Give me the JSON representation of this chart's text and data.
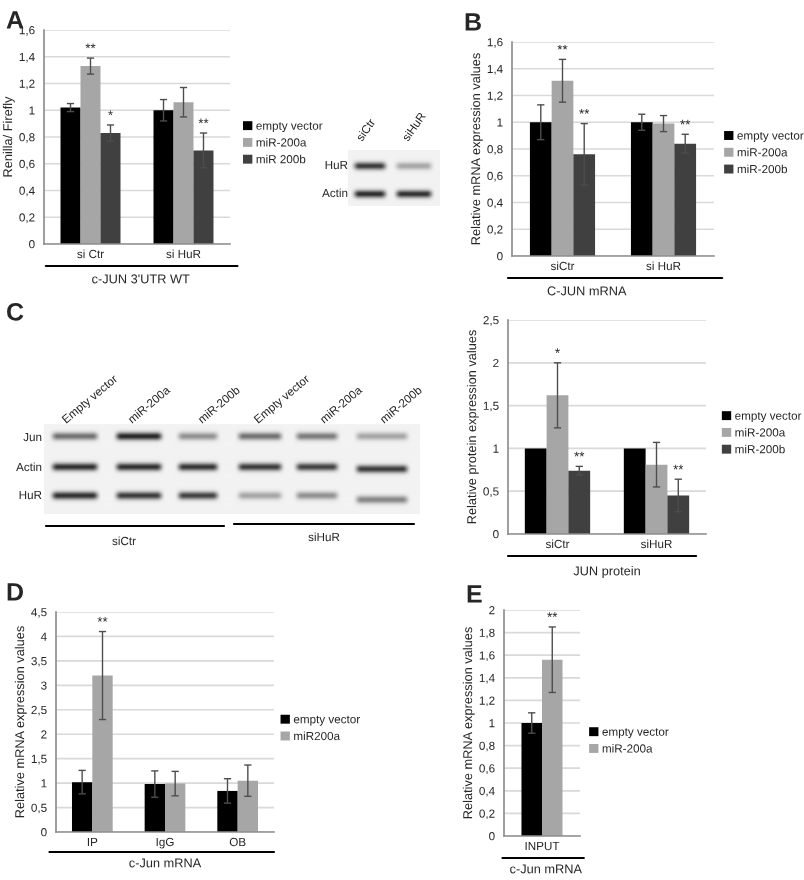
{
  "chart_data": [
    {
      "type": "bar",
      "title": "A",
      "ylabel": "Renilla/ Firefly",
      "xlabel": "c-JUN 3'UTR WT",
      "categories": [
        "si Ctr",
        "si HuR"
      ],
      "series": [
        {
          "name": "empty vector",
          "color": "#000000",
          "values": [
            1.02,
            1.0
          ],
          "errors": [
            0.03,
            0.08
          ]
        },
        {
          "name": "miR-200a",
          "color": "#a6a6a6",
          "values": [
            1.33,
            1.06
          ],
          "errors": [
            0.06,
            0.11
          ]
        },
        {
          "name": "miR 200b",
          "color": "#404040",
          "values": [
            0.83,
            0.7
          ],
          "errors": [
            0.06,
            0.13
          ]
        }
      ],
      "ylim": [
        0,
        1.6
      ],
      "yticks": [
        0,
        {
          "value": 0.2,
          "label": "0,2"
        },
        {
          "value": 0.4,
          "label": "0,4"
        },
        {
          "value": 0.6,
          "label": "0,6"
        },
        {
          "value": 0.8,
          "label": "0,8"
        },
        1,
        {
          "value": 1.2,
          "label": "1,2"
        },
        {
          "value": 1.4,
          "label": "1,4"
        },
        {
          "value": 1.6,
          "label": "1,6"
        }
      ],
      "grid": "y",
      "legend": "right",
      "annotations": [
        "**",
        "*",
        "**"
      ]
    },
    {
      "type": "other",
      "annotations": [
        "siCtr",
        "siHuR",
        "HuR",
        "Actin"
      ]
    },
    {
      "type": "bar",
      "title": "B",
      "ylabel": "Relative mRNA expression values",
      "xlabel": "C-JUN mRNA",
      "categories": [
        "siCtr",
        "si HuR"
      ],
      "series": [
        {
          "name": "empty vector",
          "color": "#000000",
          "values": [
            1.0,
            1.0
          ],
          "errors": [
            0.13,
            0.06
          ]
        },
        {
          "name": "miR-200a",
          "color": "#a6a6a6",
          "values": [
            1.31,
            0.99
          ],
          "errors": [
            0.16,
            0.06
          ]
        },
        {
          "name": "miR-200b",
          "color": "#404040",
          "values": [
            0.76,
            0.84
          ],
          "errors": [
            0.23,
            0.07
          ]
        }
      ],
      "ylim": [
        0,
        1.6
      ],
      "yticks": [
        0,
        {
          "value": 0.2,
          "label": "0,2"
        },
        {
          "value": 0.4,
          "label": "0,4"
        },
        {
          "value": 0.6,
          "label": "0,6"
        },
        {
          "value": 0.8,
          "label": "0,8"
        },
        1,
        {
          "value": 1.2,
          "label": "1,2"
        },
        {
          "value": 1.4,
          "label": "1,4"
        },
        {
          "value": 1.6,
          "label": "1,6"
        }
      ],
      "grid": "y",
      "legend": "right",
      "annotations": [
        "**",
        "**",
        "**"
      ]
    },
    {
      "type": "other",
      "title": "C",
      "annotations": [
        "Empty vector",
        "miR-200a",
        "miR-200b",
        "Empty vector",
        "miR-200a",
        "miR-200b",
        "Jun",
        "Actin",
        "HuR",
        "siCtr",
        "siHuR"
      ]
    },
    {
      "type": "bar",
      "ylabel": "Relative protein expression values",
      "xlabel": "JUN protein",
      "categories": [
        "siCtr",
        "siHuR"
      ],
      "series": [
        {
          "name": "empty vector",
          "color": "#000000",
          "values": [
            1.0,
            1.0
          ]
        },
        {
          "name": "miR-200a",
          "color": "#a6a6a6",
          "values": [
            1.62,
            0.81
          ],
          "errors": [
            0.38,
            0.26
          ]
        },
        {
          "name": "miR-200b",
          "color": "#404040",
          "values": [
            0.74,
            0.45
          ],
          "errors": [
            0.05,
            0.19
          ]
        }
      ],
      "ylim": [
        0,
        2.5
      ],
      "yticks": [
        0,
        {
          "value": 0.5,
          "label": "0,5"
        },
        1,
        {
          "value": 1.5,
          "label": "1,5"
        },
        2,
        {
          "value": 2.5,
          "label": "2,5"
        }
      ],
      "grid": "y",
      "legend": "right",
      "annotations": [
        "*",
        "**",
        "**"
      ]
    },
    {
      "type": "bar",
      "title": "D",
      "ylabel": "Relative mRNA expression values",
      "xlabel": "c-Jun mRNA",
      "categories": [
        "IP",
        "IgG",
        "OB"
      ],
      "series": [
        {
          "name": "empty vector",
          "color": "#000000",
          "values": [
            1.02,
            0.98,
            0.84
          ],
          "errors": [
            0.24,
            0.27,
            0.25
          ]
        },
        {
          "name": "miR200a",
          "color": "#a6a6a6",
          "values": [
            3.2,
            0.99,
            1.05
          ],
          "errors": [
            0.9,
            0.25,
            0.32
          ]
        }
      ],
      "ylim": [
        0,
        4.5
      ],
      "yticks": [
        0,
        {
          "value": 0.5,
          "label": "0,5"
        },
        1,
        {
          "value": 1.5,
          "label": "1,5"
        },
        2,
        {
          "value": 2.5,
          "label": "2,5"
        },
        3,
        {
          "value": 3.5,
          "label": "3,5"
        },
        4,
        {
          "value": 4.5,
          "label": "4,5"
        }
      ],
      "grid": "y",
      "legend": "right",
      "annotations": [
        "**"
      ]
    },
    {
      "type": "bar",
      "title": "E",
      "ylabel": "Relative mRNA expression values",
      "xlabel": "c-Jun mRNA",
      "categories": [
        "INPUT"
      ],
      "series": [
        {
          "name": "empty vector",
          "color": "#000000",
          "values": [
            1.0
          ],
          "errors": [
            0.09
          ]
        },
        {
          "name": "miR-200a",
          "color": "#a6a6a6",
          "values": [
            1.56
          ],
          "errors": [
            0.29
          ]
        }
      ],
      "ylim": [
        0,
        2
      ],
      "yticks": [
        0,
        {
          "value": 0.2,
          "label": "0,2"
        },
        {
          "value": 0.4,
          "label": "0,4"
        },
        {
          "value": 0.6,
          "label": "0,6"
        },
        {
          "value": 0.8,
          "label": "0,8"
        },
        1,
        {
          "value": 1.2,
          "label": "1,2"
        },
        {
          "value": 1.4,
          "label": "1,4"
        },
        {
          "value": 1.6,
          "label": "1,6"
        },
        {
          "value": 1.8,
          "label": "1,8"
        },
        2
      ],
      "grid": "y",
      "legend": "right",
      "annotations": [
        "**"
      ]
    }
  ]
}
